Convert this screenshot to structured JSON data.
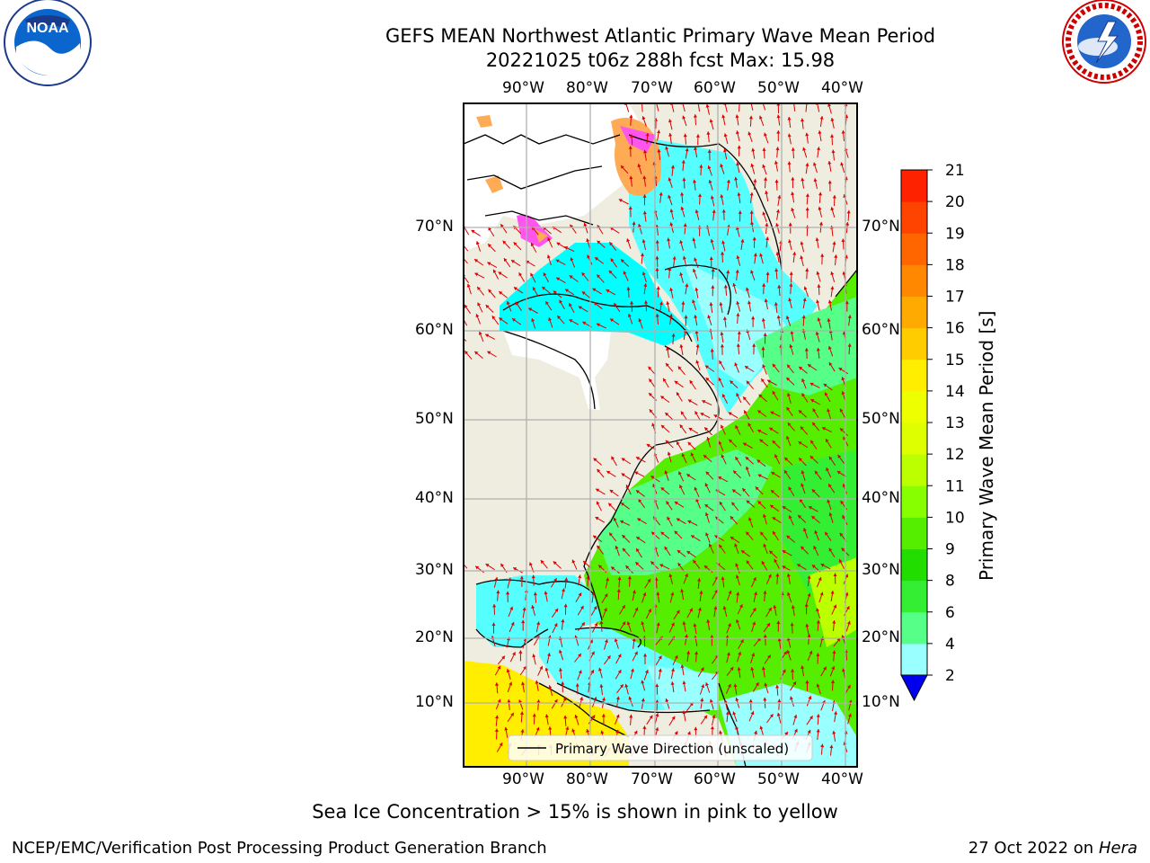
{
  "title_line1": "GEFS MEAN Northwest Atlantic Primary Wave Mean Period",
  "title_line2": "20221025 t06z 288h fcst   Max: 15.98",
  "subtitle": "Sea Ice Concentration > 15% is shown in pink to yellow",
  "footer_left": "NCEP/EMC/Verification Post Processing Product Generation Branch",
  "footer_right_date": "27 Oct 2022 on ",
  "footer_right_host": "Hera",
  "legend_label": "Primary Wave Direction (unscaled)",
  "colorbar": {
    "label": "Primary Wave Mean Period [s]",
    "ticks": [
      "2",
      "4",
      "6",
      "8",
      "9",
      "10",
      "11",
      "12",
      "13",
      "14",
      "15",
      "16",
      "17",
      "18",
      "19",
      "20",
      "21"
    ],
    "colors": [
      "#0066ff",
      "#00ccff",
      "#00ffff",
      "#33ffff",
      "#66ffff",
      "#99ffff",
      "#55ff88",
      "#33ee33",
      "#22dd00",
      "#55ee00",
      "#88ff00",
      "#bbff00",
      "#ddff00",
      "#eeff00",
      "#ffee00",
      "#ffcc00",
      "#ffaa00",
      "#ff8800",
      "#ff6600",
      "#ff4400",
      "#ff2200"
    ],
    "under_color": "#0000ee"
  },
  "lon_labels": [
    "90°W",
    "80°W",
    "70°W",
    "60°W",
    "50°W",
    "40°W"
  ],
  "lat_labels": [
    "70°N",
    "60°N",
    "50°N",
    "40°N",
    "30°N",
    "20°N",
    "10°N"
  ],
  "colors": {
    "land": "#efede0",
    "arrow": "#dd0000",
    "grid": "#b0b0b0",
    "ice_pink": "#ff55ee",
    "ice_orange": "#ffaa55"
  },
  "logos": {
    "noaa": "NOAA",
    "nws": "NATIONAL WEATHER SERVICE"
  }
}
